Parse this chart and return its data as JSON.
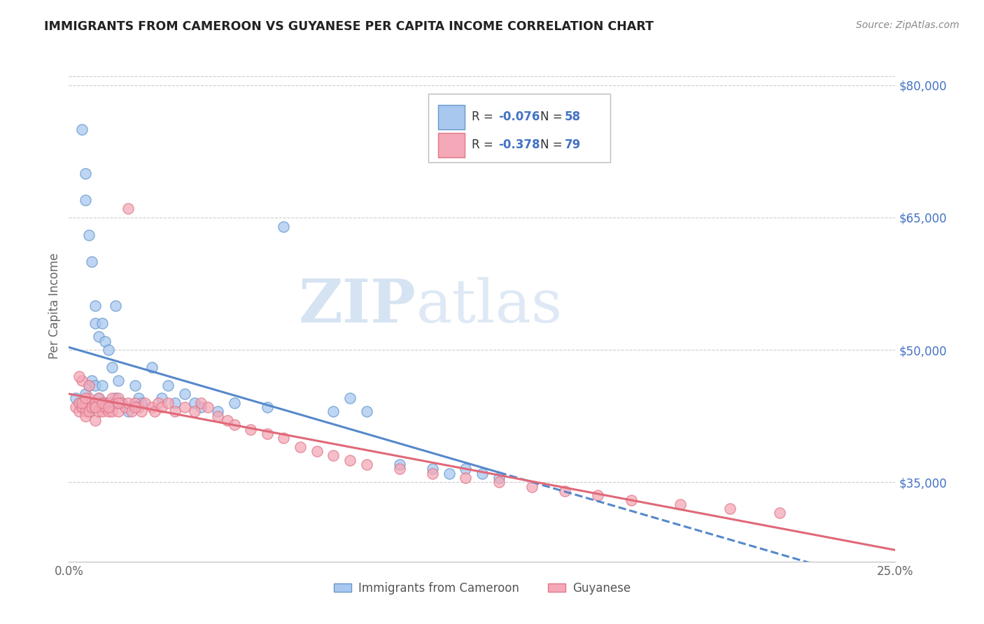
{
  "title": "IMMIGRANTS FROM CAMEROON VS GUYANESE PER CAPITA INCOME CORRELATION CHART",
  "source": "Source: ZipAtlas.com",
  "ylabel": "Per Capita Income",
  "xlim": [
    0.0,
    0.25
  ],
  "ylim": [
    26000,
    84000
  ],
  "xticks": [
    0.0,
    0.05,
    0.1,
    0.15,
    0.2,
    0.25
  ],
  "yticks_right": [
    35000,
    50000,
    65000,
    80000
  ],
  "ytick_labels_right": [
    "$35,000",
    "$50,000",
    "$65,000",
    "$80,000"
  ],
  "watermark_zip": "ZIP",
  "watermark_atlas": "atlas",
  "series1_label": "Immigrants from Cameroon",
  "series2_label": "Guyanese",
  "color_blue_fill": "#A8C8F0",
  "color_blue_edge": "#6699CC",
  "color_pink_fill": "#F4A8B8",
  "color_pink_edge": "#E07888",
  "color_line_blue": "#5588CC",
  "color_line_pink": "#E06878",
  "color_text_blue": "#4472C4",
  "background": "#FFFFFF",
  "grid_color": "#CCCCCC",
  "cameroon_x": [
    0.002,
    0.003,
    0.004,
    0.004,
    0.005,
    0.005,
    0.005,
    0.006,
    0.006,
    0.006,
    0.007,
    0.007,
    0.007,
    0.008,
    0.008,
    0.008,
    0.008,
    0.009,
    0.009,
    0.01,
    0.01,
    0.01,
    0.011,
    0.011,
    0.012,
    0.012,
    0.013,
    0.013,
    0.014,
    0.014,
    0.015,
    0.015,
    0.016,
    0.017,
    0.018,
    0.02,
    0.021,
    0.022,
    0.025,
    0.028,
    0.03,
    0.032,
    0.035,
    0.038,
    0.04,
    0.045,
    0.05,
    0.06,
    0.065,
    0.08,
    0.085,
    0.09,
    0.1,
    0.11,
    0.115,
    0.12,
    0.125,
    0.13
  ],
  "cameroon_y": [
    44500,
    44000,
    43500,
    75000,
    45000,
    70000,
    67000,
    43000,
    46000,
    63000,
    44000,
    46500,
    60000,
    44000,
    46000,
    55000,
    53000,
    44500,
    51500,
    44000,
    46000,
    53000,
    44000,
    51000,
    43500,
    50000,
    44000,
    48000,
    44500,
    55000,
    44000,
    46500,
    44000,
    43500,
    43000,
    46000,
    44500,
    44000,
    48000,
    44500,
    46000,
    44000,
    45000,
    44000,
    43500,
    43000,
    44000,
    43500,
    64000,
    43000,
    44500,
    43000,
    37000,
    36500,
    36000,
    36500,
    36000,
    35500
  ],
  "guyanese_x": [
    0.002,
    0.003,
    0.003,
    0.004,
    0.004,
    0.005,
    0.005,
    0.005,
    0.006,
    0.006,
    0.007,
    0.007,
    0.008,
    0.008,
    0.008,
    0.009,
    0.009,
    0.01,
    0.01,
    0.01,
    0.011,
    0.011,
    0.012,
    0.012,
    0.013,
    0.013,
    0.014,
    0.015,
    0.015,
    0.016,
    0.017,
    0.018,
    0.018,
    0.019,
    0.02,
    0.021,
    0.022,
    0.023,
    0.025,
    0.026,
    0.027,
    0.028,
    0.03,
    0.032,
    0.035,
    0.038,
    0.04,
    0.042,
    0.045,
    0.048,
    0.05,
    0.055,
    0.06,
    0.065,
    0.07,
    0.075,
    0.08,
    0.085,
    0.09,
    0.1,
    0.11,
    0.12,
    0.13,
    0.14,
    0.15,
    0.16,
    0.17,
    0.185,
    0.2,
    0.215,
    0.003,
    0.004,
    0.005,
    0.006,
    0.008,
    0.01,
    0.012,
    0.015,
    0.02
  ],
  "guyanese_y": [
    43500,
    43000,
    44000,
    43500,
    46500,
    44000,
    43000,
    42500,
    44500,
    43000,
    44000,
    43500,
    44000,
    43500,
    42000,
    44500,
    43000,
    44000,
    43500,
    43000,
    44000,
    43500,
    44000,
    43000,
    44500,
    43000,
    44000,
    44500,
    43000,
    44000,
    43500,
    44000,
    66000,
    43000,
    44000,
    43500,
    43000,
    44000,
    43500,
    43000,
    44000,
    43500,
    44000,
    43000,
    43500,
    43000,
    44000,
    43500,
    42500,
    42000,
    41500,
    41000,
    40500,
    40000,
    39000,
    38500,
    38000,
    37500,
    37000,
    36500,
    36000,
    35500,
    35000,
    34500,
    34000,
    33500,
    33000,
    32500,
    32000,
    31500,
    47000,
    44000,
    44500,
    46000,
    43500,
    44000,
    43500,
    44000,
    43500
  ]
}
